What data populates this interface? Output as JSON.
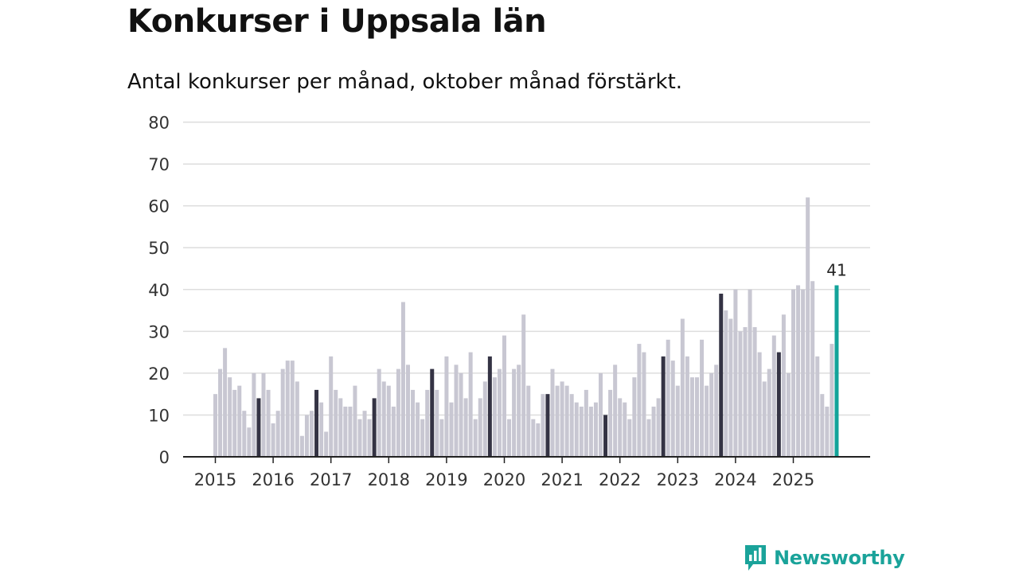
{
  "title": "Konkurser i Uppsala län",
  "subtitle": "Antal konkurser per månad, oktober månad förstärkt.",
  "brand": {
    "name": "Newsworthy",
    "icon": "newsworthy-logo-icon",
    "color": "#1aa39a"
  },
  "chart_data": {
    "type": "bar",
    "start": "2015-01",
    "end": "2025-10",
    "ylim": [
      0,
      80
    ],
    "yticks": [
      0,
      10,
      20,
      30,
      40,
      50,
      60,
      70,
      80
    ],
    "xticks": [
      "2015",
      "2016",
      "2017",
      "2018",
      "2019",
      "2020",
      "2021",
      "2022",
      "2023",
      "2024",
      "2025"
    ],
    "highlight_month": "October",
    "last_value_label": "41",
    "colors": {
      "bar": "#c8c7d2",
      "highlight": "#343344",
      "latest": "#13a39a",
      "grid": "#dddddd",
      "axis": "#222222"
    },
    "values": [
      15,
      21,
      26,
      19,
      16,
      17,
      11,
      7,
      20,
      14,
      20,
      16,
      8,
      11,
      21,
      23,
      23,
      18,
      5,
      10,
      11,
      16,
      13,
      6,
      24,
      16,
      14,
      12,
      12,
      17,
      9,
      11,
      9,
      14,
      21,
      18,
      17,
      12,
      21,
      37,
      22,
      16,
      13,
      9,
      16,
      21,
      16,
      9,
      24,
      13,
      22,
      20,
      14,
      25,
      9,
      14,
      18,
      24,
      19,
      21,
      29,
      9,
      21,
      22,
      34,
      17,
      9,
      8,
      15,
      15,
      21,
      17,
      18,
      17,
      15,
      13,
      12,
      16,
      12,
      13,
      20,
      10,
      16,
      22,
      14,
      13,
      9,
      19,
      27,
      25,
      9,
      12,
      14,
      24,
      28,
      23,
      17,
      33,
      24,
      19,
      19,
      28,
      17,
      20,
      22,
      39,
      35,
      33,
      40,
      30,
      31,
      40,
      31,
      25,
      18,
      21,
      29,
      25,
      34,
      20,
      40,
      41,
      40,
      62,
      42,
      24,
      15,
      12,
      27,
      41
    ]
  }
}
